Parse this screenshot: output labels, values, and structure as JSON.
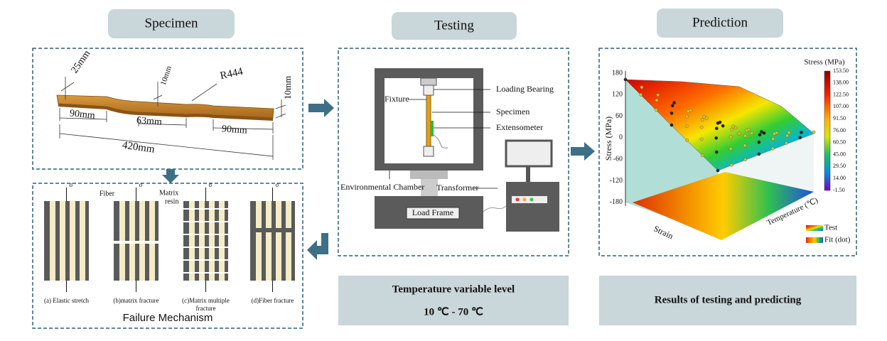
{
  "headers": {
    "specimen": "Specimen",
    "testing": "Testing",
    "prediction": "Prediction"
  },
  "specimen": {
    "dims": [
      "25mm",
      "10mm",
      "R444",
      "10mm",
      "90mm",
      "63mm",
      "90mm",
      "420mm"
    ]
  },
  "failure": {
    "sigma": "σ",
    "fiber": "Fiber",
    "matrix": [
      "Matrix",
      "resin"
    ],
    "captions": [
      [
        "(a) Elastic stretch"
      ],
      [
        "(b)matrix fracture"
      ],
      [
        "(c)Matrix multiple",
        "fracture"
      ],
      [
        "(d)Fiber fracture"
      ]
    ],
    "title": "Failure Mechanism"
  },
  "testing": {
    "labels": {
      "fixture": "Fixture",
      "loading_bearing": "Loading Bearing",
      "specimen": "Specimen",
      "extensometer": "Extensometer",
      "chamber": "Environmental Chamber",
      "transformer": "Transformer",
      "load_frame": "Load Frame"
    },
    "caption": [
      "Temperature variable level",
      "10 ℃ - 70 ℃"
    ]
  },
  "prediction": {
    "colorbar_title": "Stress (MPa)",
    "colorbar_ticks": [
      "153.50",
      "138.00",
      "122.50",
      "107.00",
      "91.50",
      "76.00",
      "60.50",
      "45.00",
      "29.50",
      "14.00",
      "-1.50"
    ],
    "z_axis_label": "Stress (MPa)",
    "z_ticks": [
      "180",
      "120",
      "60",
      "0",
      "-60",
      "-120",
      "-180"
    ],
    "strain_label": "Strain",
    "temp_label": "Temperature (℃)",
    "legend": [
      "Test",
      "Fit (dot)"
    ],
    "caption": "Results of testing and predicting"
  }
}
